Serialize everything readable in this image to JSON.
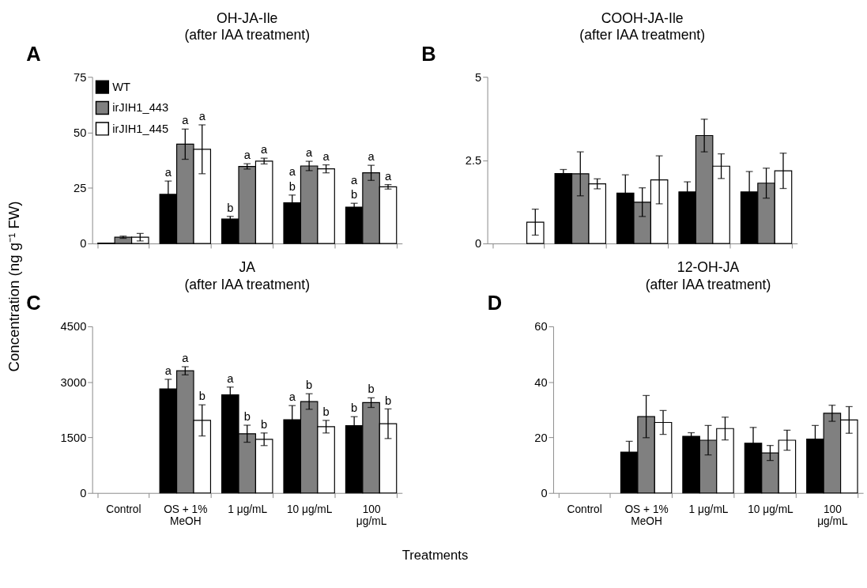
{
  "chart_data": [
    {
      "type": "bar",
      "title": "OH-JA-Ile",
      "subtitle": "(after IAA treatment)",
      "ylabel": "Concentration (ng g⁻¹ FW)",
      "annotations": [
        "A"
      ],
      "categories": [
        null,
        null,
        null,
        null,
        null
      ],
      "ylim": [
        0,
        75
      ],
      "yticks": [
        0,
        25,
        50,
        75
      ],
      "grid": false,
      "legend": "top left",
      "tick_labels": "y",
      "series": [
        {
          "name": "WT",
          "color": "#000000",
          "values": [
            0.2,
            22.1,
            11.0,
            18.3,
            16.4
          ],
          "errors": [
            null,
            6,
            1.2,
            3.5,
            1.7
          ],
          "value_labels": [
            null,
            "a",
            "b",
            "a\nb",
            "a\nb"
          ]
        },
        {
          "name": "irJIH1_443",
          "color": "#808080",
          "values": [
            2.8,
            44.7,
            34.7,
            34.9,
            31.8
          ],
          "errors": [
            0.5,
            6.8,
            1.2,
            2.1,
            3.4
          ],
          "value_labels": [
            null,
            "a",
            "a",
            "a",
            "a"
          ]
        },
        {
          "name": "irJIH1_445",
          "color": "#ffffff",
          "values": [
            2.8,
            42.4,
            37.1,
            33.6,
            25.5
          ],
          "errors": [
            1.7,
            11,
            1.3,
            1.8,
            1.0
          ],
          "value_labels": [
            null,
            "a",
            "a",
            "a",
            "a"
          ]
        }
      ]
    },
    {
      "type": "bar",
      "title": "COOH-JA-Ile",
      "subtitle": "(after IAA treatment)",
      "annotations": [
        "B"
      ],
      "categories": [
        null,
        null,
        null,
        null,
        null
      ],
      "ylim": [
        0,
        5
      ],
      "yticks": [
        0,
        2.5,
        5
      ],
      "grid": false,
      "tick_labels": "y",
      "series": [
        {
          "color": "#000000",
          "values": [
            null,
            2.1,
            1.51,
            1.55,
            1.55
          ],
          "errors": [
            null,
            0.12,
            0.55,
            0.3,
            0.61
          ]
        },
        {
          "color": "#808080",
          "values": [
            null,
            2.09,
            1.24,
            3.24,
            1.81
          ],
          "errors": [
            null,
            0.66,
            0.43,
            0.49,
            0.45
          ]
        },
        {
          "color": "#ffffff",
          "values": [
            0.64,
            1.79,
            1.91,
            2.32,
            2.18
          ],
          "errors": [
            0.39,
            0.15,
            0.72,
            0.37,
            0.53
          ]
        }
      ]
    },
    {
      "type": "bar",
      "title": "JA",
      "subtitle": "(after IAA treatment)",
      "xlabel": "Treatments",
      "annotations": [
        "C"
      ],
      "categories": [
        "Control",
        "OS + 1% MeOH",
        "1 μg/mL",
        "10 μg/mL",
        "100 μg/mL"
      ],
      "ylim": [
        0,
        4500
      ],
      "yticks": [
        0,
        1500,
        3000,
        4500
      ],
      "grid": false,
      "series": [
        {
          "color": "#000000",
          "values": [
            null,
            2810,
            2650,
            1980,
            1820
          ],
          "errors": [
            null,
            260,
            210,
            380,
            240
          ],
          "value_labels": [
            null,
            "a",
            "a",
            "a",
            "b"
          ]
        },
        {
          "color": "#808080",
          "values": [
            null,
            3300,
            1600,
            2470,
            2440
          ],
          "errors": [
            null,
            110,
            230,
            210,
            130
          ],
          "value_labels": [
            null,
            "a",
            "b",
            "b",
            "b"
          ]
        },
        {
          "color": "#ffffff",
          "values": [
            null,
            1960,
            1450,
            1790,
            1870
          ],
          "errors": [
            null,
            420,
            170,
            170,
            400
          ],
          "value_labels": [
            null,
            "b",
            "b",
            "b",
            "b"
          ]
        }
      ]
    },
    {
      "type": "bar",
      "title": "12-OH-JA",
      "subtitle": "(after IAA treatment)",
      "annotations": [
        "D"
      ],
      "categories": [
        "Control",
        "OS + 1% MeOH",
        "1 μg/mL",
        "10 μg/mL",
        "100 μg/mL"
      ],
      "ylim": [
        0,
        60
      ],
      "yticks": [
        0,
        20,
        40,
        60
      ],
      "grid": false,
      "series": [
        {
          "color": "#000000",
          "values": [
            null,
            14.7,
            20.4,
            17.9,
            19.4
          ],
          "errors": [
            null,
            3.9,
            1.3,
            5.7,
            4.9
          ]
        },
        {
          "color": "#808080",
          "values": [
            null,
            27.5,
            19.0,
            14.4,
            28.7
          ],
          "errors": [
            null,
            7.6,
            5.3,
            2.7,
            2.9
          ]
        },
        {
          "color": "#ffffff",
          "values": [
            null,
            25.4,
            23.2,
            19.0,
            26.3
          ],
          "errors": [
            null,
            4.3,
            4.1,
            3.6,
            4.8
          ]
        }
      ]
    }
  ]
}
